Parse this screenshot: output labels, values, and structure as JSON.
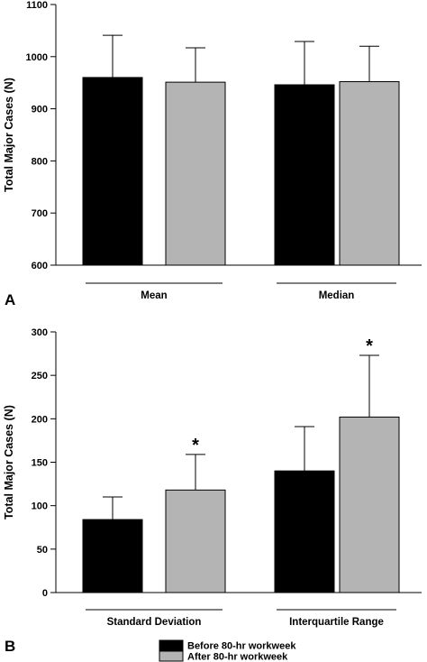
{
  "legend": {
    "before": "Before 80-hr workweek",
    "after": "After 80-hr workweek"
  },
  "colors": {
    "before": "#000000",
    "after": "#b4b4b4"
  },
  "chart_data": [
    {
      "type": "bar",
      "panel_label": "A",
      "ylabel": "Total Major Cases (N)",
      "ylim": [
        600,
        1100
      ],
      "yticks": [
        600,
        700,
        800,
        900,
        1000,
        1100
      ],
      "categories": [
        "Mean",
        "Median"
      ],
      "series": [
        {
          "name": "Before 80-hr workweek",
          "values": [
            960,
            946
          ],
          "error_upper": [
            1041,
            1029
          ]
        },
        {
          "name": "After 80-hr workweek",
          "values": [
            951,
            952
          ],
          "error_upper": [
            1017,
            1020
          ]
        }
      ],
      "significance": [],
      "grid": false,
      "legend_position": "bottom"
    },
    {
      "type": "bar",
      "panel_label": "B",
      "ylabel": "Total Major Cases (N)",
      "ylim": [
        0,
        300
      ],
      "yticks": [
        0,
        50,
        100,
        150,
        200,
        250,
        300
      ],
      "categories": [
        "Standard Deviation",
        "Interquartile Range"
      ],
      "series": [
        {
          "name": "Before 80-hr workweek",
          "values": [
            84,
            140
          ],
          "error_upper": [
            110,
            191
          ]
        },
        {
          "name": "After 80-hr workweek",
          "values": [
            118,
            202
          ],
          "error_upper": [
            159,
            273
          ]
        }
      ],
      "significance": [
        {
          "category_index": 0,
          "series_index": 1,
          "mark": "*"
        },
        {
          "category_index": 1,
          "series_index": 1,
          "mark": "*"
        }
      ],
      "grid": false,
      "legend_position": "bottom"
    }
  ]
}
